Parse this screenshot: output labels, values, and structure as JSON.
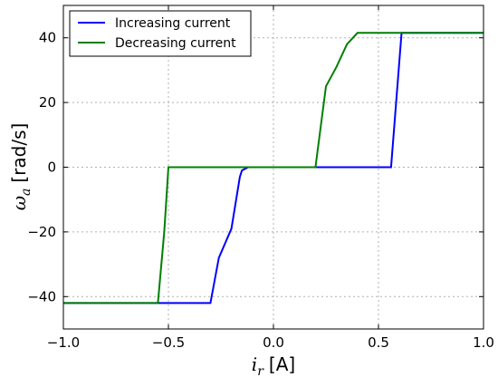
{
  "chart_data": {
    "type": "line",
    "xlabel_var": "i",
    "xlabel_sub": "r",
    "xlabel_unit": "[A]",
    "ylabel_var": "ω",
    "ylabel_sub": "a",
    "ylabel_unit": "[rad/s]",
    "xlim": [
      -1.0,
      1.0
    ],
    "ylim": [
      -50,
      50
    ],
    "xticks": [
      -1.0,
      -0.5,
      0.0,
      0.5,
      1.0
    ],
    "xtick_labels": [
      "−1.0",
      "−0.5",
      "0.0",
      "0.5",
      "1.0"
    ],
    "yticks": [
      -40,
      -20,
      0,
      20,
      40
    ],
    "ytick_labels": [
      "−40",
      "−20",
      "0",
      "20",
      "40"
    ],
    "grid": true,
    "legend_position": "upper-left",
    "series": [
      {
        "name": "Increasing current",
        "color": "#0000ff",
        "x": [
          -1.0,
          -0.3,
          -0.26,
          -0.2,
          -0.16,
          -0.15,
          -0.12,
          0.0,
          0.56,
          0.61,
          1.0
        ],
        "y": [
          -42,
          -42,
          -28,
          -19,
          -3,
          -1,
          0,
          0,
          0,
          41.5,
          41.5
        ]
      },
      {
        "name": "Decreasing current",
        "color": "#008000",
        "x": [
          -1.0,
          -0.55,
          -0.52,
          -0.5,
          0.0,
          0.2,
          0.25,
          0.3,
          0.35,
          0.4,
          0.5,
          1.0
        ],
        "y": [
          -42,
          -42,
          -20,
          0,
          0,
          0,
          25,
          31,
          38,
          41.5,
          41.5,
          41.5
        ]
      }
    ]
  }
}
